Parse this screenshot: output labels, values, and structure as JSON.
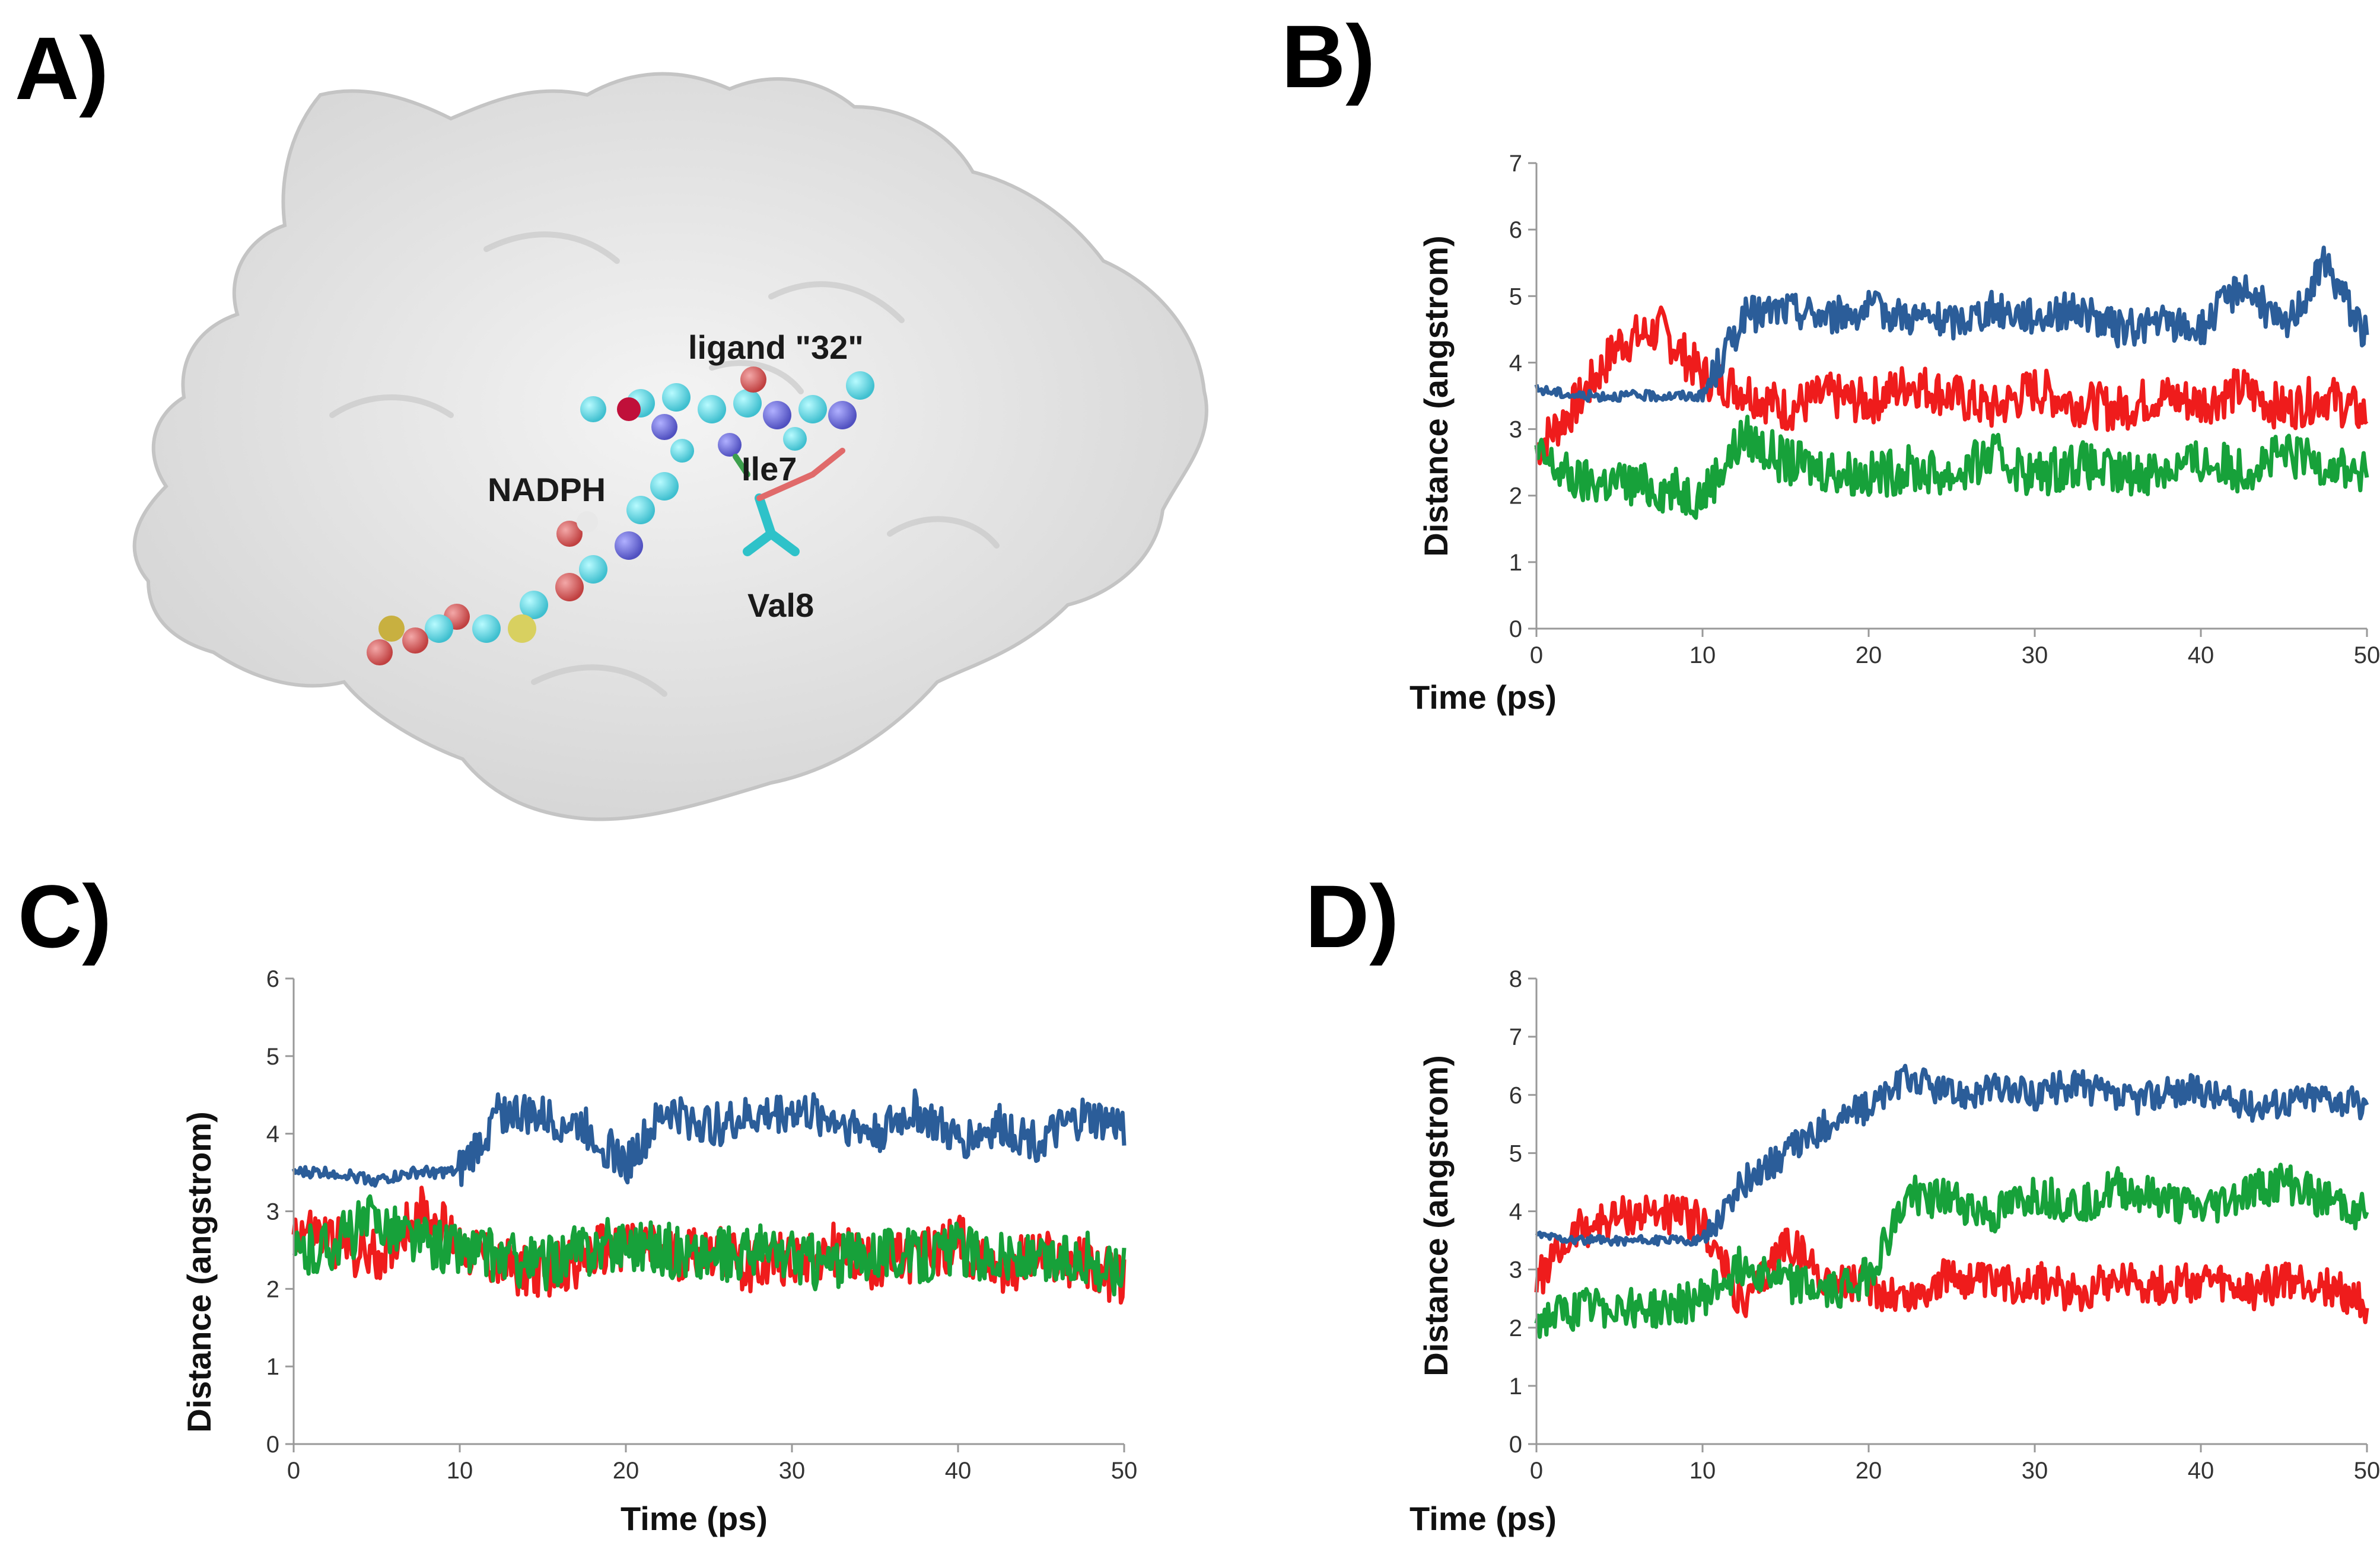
{
  "panels": {
    "A": {
      "label": "A)",
      "annotations": [
        "ligand \"32\"",
        "NADPH",
        "Ile7",
        "Val8"
      ]
    },
    "B": {
      "label": "B)"
    },
    "C": {
      "label": "C)"
    },
    "D": {
      "label": "D)"
    }
  },
  "colors": {
    "blue": "#2b5d99",
    "red": "#ef1c1c",
    "green": "#17a13a",
    "axis": "#999999"
  },
  "chart_data": [
    {
      "id": "B",
      "type": "line",
      "xlabel": "Time (ps)",
      "ylabel": "Distance (angstrom)",
      "xlim": [
        0,
        50
      ],
      "ylim": [
        0,
        7
      ],
      "xticks": [
        0,
        10,
        20,
        30,
        40,
        50
      ],
      "yticks": [
        0,
        1,
        2,
        3,
        4,
        5,
        6,
        7
      ],
      "x": [
        0,
        2.5,
        5,
        7.5,
        10,
        12.5,
        15,
        17.5,
        20,
        22.5,
        25,
        27.5,
        30,
        32.5,
        35,
        37.5,
        40,
        42.5,
        45,
        47.5,
        50
      ],
      "series": [
        {
          "name": "blue",
          "color": "#2b5d99",
          "values": [
            3.6,
            3.5,
            3.5,
            3.5,
            3.5,
            4.7,
            4.8,
            4.7,
            4.8,
            4.7,
            4.6,
            4.8,
            4.7,
            4.8,
            4.5,
            4.6,
            4.5,
            5.2,
            4.5,
            5.5,
            4.4
          ]
        },
        {
          "name": "red",
          "color": "#ef1c1c",
          "values": [
            2.7,
            3.4,
            4.3,
            4.5,
            3.8,
            3.6,
            3.3,
            3.5,
            3.4,
            3.7,
            3.5,
            3.3,
            3.6,
            3.4,
            3.3,
            3.5,
            3.4,
            3.6,
            3.3,
            3.5,
            3.2
          ]
        },
        {
          "name": "green",
          "color": "#17a13a",
          "values": [
            2.6,
            2.2,
            2.2,
            2.1,
            2.0,
            2.9,
            2.5,
            2.4,
            2.3,
            2.4,
            2.3,
            2.6,
            2.3,
            2.5,
            2.3,
            2.4,
            2.5,
            2.4,
            2.6,
            2.5,
            2.3
          ]
        }
      ]
    },
    {
      "id": "C",
      "type": "line",
      "xlabel": "Time (ps)",
      "ylabel": "Distance (angstrom)",
      "xlim": [
        0,
        50
      ],
      "ylim": [
        0,
        6
      ],
      "xticks": [
        0,
        10,
        20,
        30,
        40,
        50
      ],
      "yticks": [
        0,
        1,
        2,
        3,
        4,
        5,
        6
      ],
      "x": [
        0,
        2.5,
        5,
        7.5,
        10,
        12.5,
        15,
        17.5,
        20,
        22.5,
        25,
        27.5,
        30,
        32.5,
        35,
        37.5,
        40,
        42.5,
        45,
        47.5,
        50
      ],
      "series": [
        {
          "name": "blue",
          "color": "#2b5d99",
          "values": [
            3.5,
            3.5,
            3.4,
            3.5,
            3.5,
            4.3,
            4.2,
            4.1,
            3.6,
            4.3,
            4.1,
            4.2,
            4.3,
            4.2,
            4.0,
            4.3,
            3.9,
            4.1,
            3.9,
            4.2,
            4.1
          ]
        },
        {
          "name": "red",
          "color": "#ef1c1c",
          "values": [
            2.8,
            2.6,
            2.4,
            3.0,
            2.6,
            2.3,
            2.2,
            2.4,
            2.6,
            2.4,
            2.5,
            2.3,
            2.4,
            2.5,
            2.3,
            2.4,
            2.6,
            2.3,
            2.4,
            2.3,
            2.1
          ]
        },
        {
          "name": "green",
          "color": "#17a13a",
          "values": [
            2.4,
            2.6,
            2.9,
            2.6,
            2.5,
            2.4,
            2.3,
            2.5,
            2.6,
            2.5,
            2.4,
            2.5,
            2.4,
            2.3,
            2.5,
            2.4,
            2.5,
            2.4,
            2.3,
            2.4,
            2.2
          ]
        }
      ]
    },
    {
      "id": "D",
      "type": "line",
      "xlabel": "Time (ps)",
      "ylabel": "Distance (angstrom)",
      "xlim": [
        0,
        50
      ],
      "ylim": [
        0,
        8
      ],
      "xticks": [
        0,
        10,
        20,
        30,
        40,
        50
      ],
      "yticks": [
        0,
        1,
        2,
        3,
        4,
        5,
        6,
        7,
        8
      ],
      "x": [
        0,
        2.5,
        5,
        7.5,
        10,
        12.5,
        15,
        17.5,
        20,
        22.5,
        25,
        27.5,
        30,
        32.5,
        35,
        37.5,
        40,
        42.5,
        45,
        47.5,
        50
      ],
      "series": [
        {
          "name": "blue",
          "color": "#2b5d99",
          "values": [
            3.6,
            3.5,
            3.5,
            3.5,
            3.5,
            4.5,
            5.0,
            5.5,
            5.8,
            6.3,
            6.0,
            6.1,
            6.0,
            6.2,
            5.9,
            6.0,
            6.1,
            5.8,
            5.9,
            6.0,
            5.8
          ]
        },
        {
          "name": "red",
          "color": "#ef1c1c",
          "values": [
            2.8,
            3.7,
            3.9,
            4.0,
            3.8,
            2.3,
            3.5,
            2.8,
            2.7,
            2.5,
            2.9,
            2.7,
            2.8,
            2.6,
            2.9,
            2.7,
            2.8,
            2.6,
            2.8,
            2.7,
            2.4
          ]
        },
        {
          "name": "green",
          "color": "#17a13a",
          "values": [
            2.1,
            2.3,
            2.4,
            2.3,
            2.5,
            3.1,
            2.8,
            2.6,
            2.9,
            4.3,
            4.2,
            3.9,
            4.3,
            4.1,
            4.4,
            4.2,
            4.0,
            4.3,
            4.5,
            4.2,
            4.0
          ]
        }
      ]
    }
  ]
}
